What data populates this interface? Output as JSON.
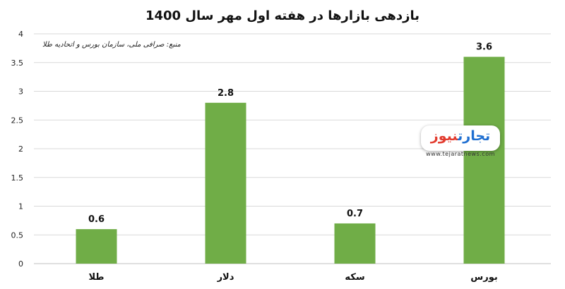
{
  "title": "بازدهی بازارها در هفته اول مهر سال 1400",
  "source_note": "منبع: صرافی ملی، سازمان بورس و اتحادیه طلا",
  "logo": {
    "text_part1": "تجارت",
    "text_part2": "نیوز",
    "url": "www.tejaratnews.com"
  },
  "colors": {
    "bar": "#70ad47",
    "grid": "#d9d9d9",
    "axis": "#bfbfbf"
  },
  "chart_data": {
    "type": "bar",
    "title": "بازدهی بازارها در هفته اول مهر سال 1400",
    "categories": [
      "طلا",
      "دلار",
      "سکه",
      "بورس"
    ],
    "values": [
      0.6,
      2.8,
      0.7,
      3.6
    ],
    "data_labels": [
      "0.6",
      "2.8",
      "0.7",
      "3.6"
    ],
    "ylim": [
      0,
      4
    ],
    "yticks": [
      "0",
      "0.5",
      "1",
      "1.5",
      "2",
      "2.5",
      "3",
      "3.5",
      "4"
    ],
    "grid": true,
    "legend": "none",
    "xlabel": "",
    "ylabel": ""
  }
}
